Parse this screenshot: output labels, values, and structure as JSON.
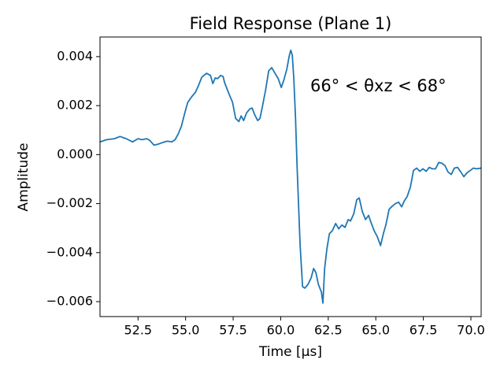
{
  "chart_data": {
    "type": "line",
    "title": "Field Response (Plane 1)",
    "x_label": "Time [μs]",
    "y_label": "Amplitude",
    "annotation": "66° < θxz < 68°",
    "xlim": [
      50.5,
      70.54
    ],
    "ylim": [
      -0.00661,
      0.0048
    ],
    "xticks": [
      52.5,
      {
        "value": 55,
        "label": "55.0"
      },
      57.5,
      {
        "value": 60,
        "label": "60.0"
      },
      62.5,
      {
        "value": 65,
        "label": "65.0"
      },
      67.5,
      {
        "value": 70,
        "label": "70.0"
      }
    ],
    "yticks": [
      {
        "value": -0.006,
        "label": "−0.006"
      },
      {
        "value": -0.004,
        "label": "−0.004"
      },
      {
        "value": -0.002,
        "label": "−0.002"
      },
      {
        "value": 0,
        "label": "0.000"
      },
      {
        "value": 0.002,
        "label": "0.002"
      },
      {
        "value": 0.004,
        "label": "0.004"
      }
    ],
    "grid": false,
    "series": [
      {
        "color": "#1f77b4",
        "x": [
          50.51,
          50.84,
          51.26,
          51.55,
          51.88,
          52.21,
          52.5,
          52.71,
          52.96,
          53.12,
          53.33,
          53.53,
          53.74,
          54.03,
          54.28,
          54.45,
          54.61,
          54.78,
          54.94,
          55.11,
          55.31,
          55.52,
          55.69,
          55.85,
          56.1,
          56.31,
          56.43,
          56.56,
          56.68,
          56.84,
          56.97,
          57.05,
          57.26,
          57.47,
          57.63,
          57.8,
          57.92,
          58.05,
          58.21,
          58.38,
          58.5,
          58.62,
          58.79,
          58.91,
          59.04,
          59.2,
          59.37,
          59.53,
          59.7,
          59.87,
          60.03,
          60.16,
          60.32,
          60.45,
          60.53,
          60.61,
          60.69,
          60.78,
          60.86,
          60.94,
          61.02,
          61.15,
          61.27,
          61.44,
          61.6,
          61.73,
          61.85,
          61.98,
          62.14,
          62.22,
          62.31,
          62.43,
          62.56,
          62.72,
          62.89,
          63.05,
          63.22,
          63.38,
          63.55,
          63.67,
          63.84,
          64.0,
          64.13,
          64.29,
          64.46,
          64.62,
          64.75,
          64.91,
          65.08,
          65.25,
          65.41,
          65.53,
          65.7,
          65.87,
          66.03,
          66.2,
          66.36,
          66.49,
          66.65,
          66.82,
          66.98,
          67.15,
          67.31,
          67.48,
          67.65,
          67.81,
          67.98,
          68.14,
          68.31,
          68.47,
          68.64,
          68.8,
          68.97,
          69.13,
          69.3,
          69.47,
          69.63,
          69.8,
          69.96,
          70.13,
          70.29,
          70.54
        ],
        "values": [
          0.00052,
          0.00061,
          0.00065,
          0.00074,
          0.00065,
          0.00052,
          0.00065,
          0.00061,
          0.00065,
          0.00058,
          0.00039,
          0.00042,
          0.00048,
          0.00055,
          0.00052,
          0.00061,
          0.00084,
          0.00116,
          0.00165,
          0.00213,
          0.00235,
          0.00255,
          0.00284,
          0.00316,
          0.00332,
          0.00323,
          0.0029,
          0.00313,
          0.0031,
          0.00323,
          0.00319,
          0.00294,
          0.00252,
          0.00213,
          0.00148,
          0.00135,
          0.00158,
          0.00139,
          0.00171,
          0.00187,
          0.0019,
          0.00165,
          0.00139,
          0.00148,
          0.00197,
          0.00261,
          0.00342,
          0.00355,
          0.00332,
          0.0031,
          0.00274,
          0.00303,
          0.00348,
          0.00403,
          0.00426,
          0.00406,
          0.0031,
          0.00148,
          -0.00045,
          -0.00206,
          -0.00368,
          -0.00539,
          -0.00545,
          -0.00529,
          -0.00503,
          -0.00465,
          -0.00481,
          -0.00529,
          -0.00561,
          -0.00606,
          -0.00465,
          -0.00384,
          -0.00323,
          -0.0031,
          -0.00281,
          -0.00303,
          -0.00287,
          -0.00297,
          -0.00265,
          -0.00271,
          -0.00242,
          -0.00184,
          -0.00177,
          -0.00232,
          -0.00265,
          -0.00248,
          -0.00277,
          -0.0031,
          -0.00335,
          -0.00371,
          -0.00319,
          -0.00287,
          -0.00223,
          -0.0021,
          -0.002,
          -0.00194,
          -0.00213,
          -0.0019,
          -0.00171,
          -0.00132,
          -0.00065,
          -0.00055,
          -0.00068,
          -0.00058,
          -0.00068,
          -0.00052,
          -0.00058,
          -0.00058,
          -0.00032,
          -0.00035,
          -0.00045,
          -0.00071,
          -0.00081,
          -0.00055,
          -0.00052,
          -0.00071,
          -0.0009,
          -0.00074,
          -0.00065,
          -0.00055,
          -0.00058,
          -0.00055
        ]
      }
    ]
  }
}
